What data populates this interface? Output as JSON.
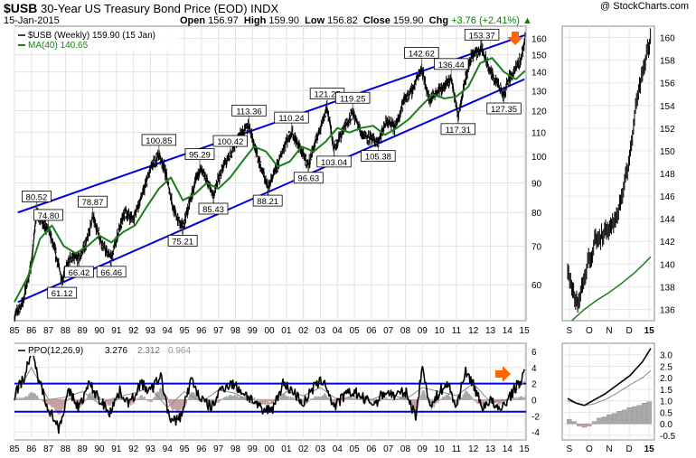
{
  "header": {
    "symbol": "$USB",
    "name": "30-Year US Treasury Bond Price (EOD)",
    "exchange": "INDX",
    "date": "15-Jan-2015",
    "open_label": "Open",
    "open": "156.97",
    "high_label": "High",
    "high": "159.90",
    "low_label": "Low",
    "low": "156.82",
    "close_label": "Close",
    "close": "159.90",
    "chg_label": "Chg",
    "chg": "+3.76 (+2.41%)",
    "brand": "@ StockCharts.com"
  },
  "colors": {
    "price": "#000000",
    "ma": "#1a7f1a",
    "channel": "#0000e0",
    "ppo": "#000000",
    "signal": "#888888",
    "hist_pos": "#a9a9a9",
    "hist_neg": "#c8a0a0",
    "arrow": "#ff6600"
  },
  "chart_data": [
    {
      "type": "line",
      "panel": "price-weekly",
      "legend": [
        "$USB (Weekly) 159.90 (15 Jan)",
        "MA(40) 140.65"
      ],
      "scale": "log",
      "ylim": [
        52,
        168
      ],
      "y_ticks": [
        60,
        70,
        80,
        90,
        100,
        110,
        120,
        130,
        140,
        150,
        160
      ],
      "x_ticks": [
        "85",
        "86",
        "87",
        "88",
        "89",
        "90",
        "91",
        "92",
        "93",
        "94",
        "95",
        "96",
        "97",
        "98",
        "99",
        "00",
        "01",
        "02",
        "03",
        "04",
        "05",
        "06",
        "07",
        "08",
        "09",
        "10",
        "11",
        "12",
        "13",
        "14",
        "15"
      ],
      "series": [
        {
          "name": "$USB (Weekly)",
          "x": [
            1985.0,
            1985.5,
            1986.0,
            1986.3,
            1986.7,
            1987.0,
            1987.3,
            1987.8,
            1988.3,
            1988.8,
            1989.3,
            1989.6,
            1990.2,
            1990.7,
            1991.0,
            1991.5,
            1992.0,
            1992.6,
            1993.0,
            1993.5,
            1993.8,
            1994.4,
            1994.9,
            1995.4,
            1995.9,
            1996.4,
            1996.7,
            1997.2,
            1997.7,
            1998.2,
            1998.8,
            1999.3,
            1999.9,
            2000.4,
            2000.9,
            2001.3,
            2001.8,
            2002.3,
            2002.8,
            2003.4,
            2003.8,
            2004.4,
            2004.9,
            2005.4,
            2005.8,
            2006.4,
            2006.9,
            2007.4,
            2007.9,
            2008.4,
            2008.95,
            2009.4,
            2009.9,
            2010.3,
            2010.7,
            2011.1,
            2011.5,
            2011.9,
            2012.5,
            2012.9,
            2013.5,
            2013.8,
            2014.0,
            2014.4,
            2014.8,
            2015.04
          ],
          "values": [
            53,
            56,
            65,
            80.52,
            76,
            74.8,
            70,
            61.12,
            67,
            66.42,
            72,
            78.87,
            70,
            66.46,
            72,
            80,
            78,
            87,
            95,
            100.85,
            96,
            80,
            75.21,
            85,
            95.29,
            90,
            85.43,
            95,
            100.42,
            108,
            113.36,
            100,
            88.21,
            95,
            105,
            110.24,
            103,
            96.63,
            108,
            121.27,
            103.04,
            112,
            119.25,
            110,
            108,
            105.38,
            115,
            112,
            125,
            130,
            142.62,
            125,
            130,
            132,
            136.44,
            117.31,
            135,
            150,
            153.37,
            142,
            132,
            127.35,
            135,
            140,
            148,
            159.9
          ]
        },
        {
          "name": "MA(40)",
          "x": [
            1985.0,
            1985.8,
            1986.5,
            1987.2,
            1987.9,
            1988.6,
            1989.3,
            1990.0,
            1990.7,
            1991.4,
            1992.1,
            1992.8,
            1993.5,
            1994.2,
            1994.9,
            1995.6,
            1996.3,
            1997.0,
            1997.7,
            1998.4,
            1999.1,
            1999.8,
            2000.5,
            2001.2,
            2001.9,
            2002.6,
            2003.3,
            2004.0,
            2004.7,
            2005.4,
            2006.1,
            2006.8,
            2007.5,
            2008.2,
            2008.9,
            2009.6,
            2010.3,
            2011.0,
            2011.7,
            2012.4,
            2013.1,
            2013.8,
            2014.5,
            2015.04
          ],
          "values": [
            56,
            62,
            72,
            76,
            70,
            68,
            70,
            73,
            71,
            74,
            76,
            82,
            88,
            92,
            84,
            86,
            90,
            88,
            92,
            98,
            104,
            102,
            96,
            98,
            104,
            102,
            106,
            112,
            110,
            112,
            113,
            109,
            112,
            116,
            122,
            128,
            126,
            127,
            132,
            145,
            148,
            140,
            136,
            140.65
          ]
        }
      ],
      "channel": {
        "upper": [
          [
            1985.2,
            80
          ],
          [
            2015.0,
            162
          ]
        ],
        "lower": [
          [
            1985.2,
            56
          ],
          [
            2015.0,
            136
          ]
        ]
      },
      "annotations": [
        "80.52",
        "74.80",
        "78.87",
        "66.42",
        "66.46",
        "61.12",
        "100.85",
        "75.21",
        "100.42",
        "95.29",
        "85.43",
        "113.36",
        "88.21",
        "110.24",
        "96.63",
        "121.27",
        "103.04",
        "119.25",
        "105.38",
        "142.62",
        "136.44",
        "117.31",
        "153.37",
        "127.35"
      ]
    },
    {
      "type": "line",
      "panel": "price-daily-inset",
      "ylim": [
        135,
        161
      ],
      "y_ticks": [
        136,
        138,
        140,
        142,
        144,
        146,
        148,
        150,
        152,
        154,
        156,
        158,
        160
      ],
      "x_ticks": [
        "S",
        "O",
        "N",
        "D",
        "15"
      ],
      "series": [
        {
          "name": "price",
          "x": [
            0.0,
            0.05,
            0.09,
            0.13,
            0.17,
            0.21,
            0.25,
            0.29,
            0.33,
            0.37,
            0.41,
            0.45,
            0.49,
            0.53,
            0.57,
            0.62,
            0.66,
            0.7,
            0.74,
            0.78,
            0.82,
            0.86,
            0.9,
            0.95,
            1.0
          ],
          "values": [
            139.5,
            138,
            137,
            136.8,
            138,
            138.5,
            141,
            140,
            142.5,
            142,
            142.5,
            143,
            142.5,
            143.5,
            144,
            145,
            146,
            148,
            149,
            151,
            154,
            155.5,
            157,
            158.5,
            159.9
          ]
        },
        {
          "name": "MA(40)",
          "x": [
            0.05,
            0.2,
            0.35,
            0.5,
            0.65,
            0.8,
            0.9,
            1.0
          ],
          "values": [
            135,
            136,
            136.8,
            137.5,
            138.3,
            139.2,
            139.9,
            140.65
          ]
        }
      ]
    },
    {
      "type": "line",
      "panel": "ppo-weekly",
      "legend": [
        "PPO(12,26,9)",
        "3.276",
        "2.312",
        "0.964"
      ],
      "ylim": [
        -5,
        7
      ],
      "y_ticks": [
        -4,
        -2,
        0,
        2,
        4,
        6
      ],
      "hlines": [
        2,
        -1.5
      ],
      "series": [
        {
          "name": "PPO(12,26,9)",
          "x": [
            1985.0,
            1985.6,
            1986.0,
            1986.5,
            1987.0,
            1987.6,
            1988.2,
            1988.8,
            1989.4,
            1990.0,
            1990.6,
            1991.2,
            1991.8,
            1992.4,
            1993.0,
            1993.6,
            1994.2,
            1994.8,
            1995.4,
            1996.0,
            1996.6,
            1997.2,
            1997.8,
            1998.4,
            1999.0,
            1999.6,
            2000.2,
            2000.8,
            2001.4,
            2002.0,
            2002.6,
            2003.2,
            2003.8,
            2004.4,
            2005.0,
            2005.6,
            2006.2,
            2006.8,
            2007.4,
            2008.0,
            2008.6,
            2009.0,
            2009.5,
            2010.0,
            2010.5,
            2011.0,
            2011.5,
            2012.0,
            2012.5,
            2013.0,
            2013.5,
            2014.0,
            2014.5,
            2015.04
          ],
          "values": [
            0.5,
            3,
            6,
            2,
            -1,
            -3.5,
            1,
            -1,
            2,
            0,
            -1.5,
            1,
            -0.5,
            2,
            1,
            3,
            -3,
            -2,
            2.5,
            0,
            -1,
            1.5,
            2,
            1,
            0,
            -1.5,
            -1,
            2,
            1,
            -0.5,
            1.5,
            2.5,
            -1,
            0.5,
            1,
            0,
            -0.5,
            1,
            0.5,
            1,
            -2,
            4,
            -1,
            1,
            2,
            -1,
            3.5,
            2,
            -1,
            0,
            -1.5,
            0,
            1.5,
            3.276
          ]
        },
        {
          "name": "signal",
          "x": [
            1985.0,
            1986.0,
            1987.0,
            1988.0,
            1989.0,
            1990.0,
            1991.0,
            1992.0,
            1993.0,
            1994.0,
            1995.0,
            1996.0,
            1997.0,
            1998.0,
            1999.0,
            2000.0,
            2001.0,
            2002.0,
            2003.0,
            2004.0,
            2005.0,
            2006.0,
            2007.0,
            2008.0,
            2009.0,
            2010.0,
            2011.0,
            2012.0,
            2013.0,
            2014.0,
            2015.04
          ],
          "values": [
            0.3,
            4,
            0,
            0.3,
            1,
            -0.5,
            0.3,
            0.8,
            1.5,
            -1,
            1,
            -0.3,
            1.2,
            0.8,
            -0.5,
            -0.5,
            1,
            0.5,
            1.5,
            0,
            0.5,
            0,
            0.8,
            0,
            1.5,
            1,
            0.5,
            2,
            -0.3,
            0,
            2.312
          ]
        }
      ]
    },
    {
      "type": "line",
      "panel": "ppo-daily-inset",
      "ylim": [
        -0.7,
        3.5
      ],
      "y_ticks": [
        -0.5,
        0,
        0.5,
        1.0,
        1.5,
        2.0,
        2.5,
        3.0
      ],
      "x_ticks": [
        "S",
        "O",
        "N",
        "D",
        "15"
      ],
      "series": [
        {
          "name": "PPO",
          "x": [
            0.0,
            0.1,
            0.2,
            0.3,
            0.45,
            0.6,
            0.75,
            0.9,
            1.0
          ],
          "values": [
            1.1,
            0.9,
            0.8,
            1.0,
            1.3,
            1.7,
            2.1,
            2.7,
            3.276
          ]
        },
        {
          "name": "signal",
          "x": [
            0.0,
            0.1,
            0.2,
            0.3,
            0.45,
            0.6,
            0.75,
            0.9,
            1.0
          ],
          "values": [
            1.0,
            0.9,
            0.8,
            0.85,
            1.05,
            1.35,
            1.7,
            2.0,
            2.312
          ]
        },
        {
          "name": "histogram",
          "x": [
            0.02,
            0.08,
            0.14,
            0.2,
            0.26,
            0.32,
            0.38,
            0.44,
            0.5,
            0.56,
            0.62,
            0.68,
            0.74,
            0.8,
            0.86,
            0.92,
            0.98
          ],
          "values": [
            0.2,
            0.1,
            -0.1,
            -0.15,
            -0.1,
            0.1,
            0.25,
            0.3,
            0.4,
            0.45,
            0.55,
            0.6,
            0.7,
            0.75,
            0.8,
            0.9,
            0.964
          ]
        }
      ]
    }
  ]
}
